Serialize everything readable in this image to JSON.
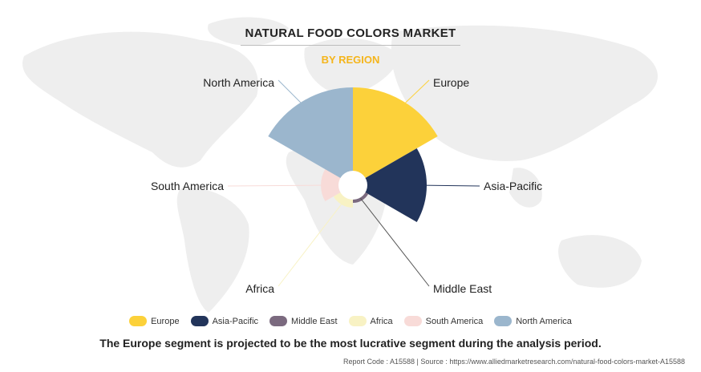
{
  "header": {
    "title": "NATURAL FOOD COLORS MARKET",
    "subtitle": "BY REGION"
  },
  "chart_data": {
    "type": "pie",
    "subtype": "polar-area (nightingale rose)",
    "title": "NATURAL FOOD COLORS MARKET",
    "subtitle": "BY REGION",
    "categories": [
      "Europe",
      "Asia-Pacific",
      "Middle East",
      "Africa",
      "South America",
      "North America"
    ],
    "values": [
      122,
      92,
      22,
      28,
      40,
      122
    ],
    "value_note": "relative radial magnitudes estimated from slice lengths; no numeric labels printed",
    "colors": [
      "#fcd13a",
      "#22345a",
      "#7b6a7f",
      "#f8f2c4",
      "#f8dbd8",
      "#9bb6cd"
    ],
    "legend_position": "bottom",
    "grid": false
  },
  "footer": {
    "statement": "The Europe segment is projected to be the most lucrative segment during the analysis period.",
    "source": "Report Code : A15588  |  Source : https://www.alliedmarketresearch.com/natural-food-colors-market-A15588"
  }
}
